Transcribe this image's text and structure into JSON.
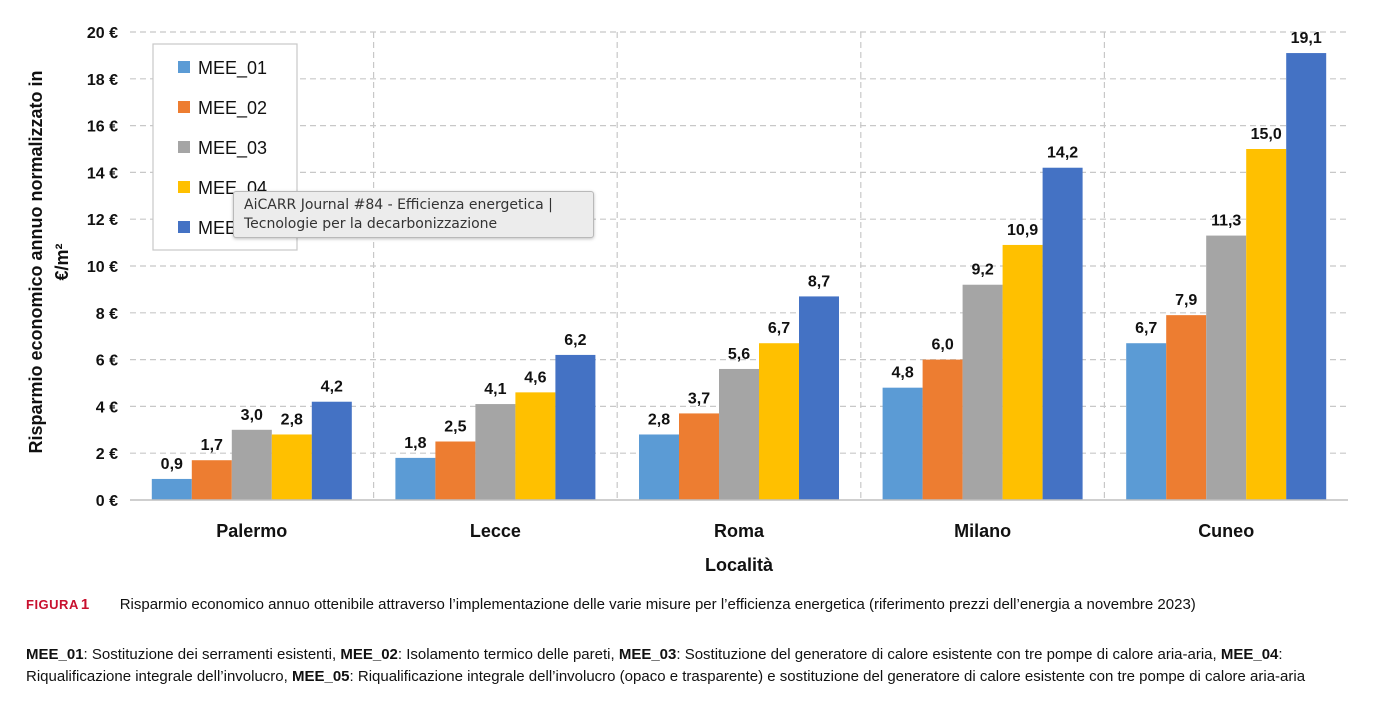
{
  "chart_data": {
    "type": "bar",
    "xlabel": "Località",
    "ylabel": "Risparmio economico annuo normalizzato in €/m²",
    "ylabel_line1": "Risparmio economico annuo normalizzato in",
    "ylabel_line2": "€/m²",
    "ylim": [
      0,
      20
    ],
    "yticks": [
      "0 €",
      "2 €",
      "4 €",
      "6 €",
      "8 €",
      "10 €",
      "12 €",
      "14 €",
      "16 €",
      "18 €",
      "20 €"
    ],
    "grid": true,
    "legend_position": "top-left",
    "categories": [
      "Palermo",
      "Lecce",
      "Roma",
      "Milano",
      "Cuneo"
    ],
    "series": [
      {
        "name": "MEE_01",
        "color": "#5b9bd5",
        "values": [
          0.9,
          1.8,
          2.8,
          4.8,
          6.7
        ],
        "labels": [
          "0,9",
          "1,8",
          "2,8",
          "4,8",
          "6,7"
        ]
      },
      {
        "name": "MEE_02",
        "color": "#ed7d31",
        "values": [
          1.7,
          2.5,
          3.7,
          6.0,
          7.9
        ],
        "labels": [
          "1,7",
          "2,5",
          "3,7",
          "6,0",
          "7,9"
        ]
      },
      {
        "name": "MEE_03",
        "color": "#a5a5a5",
        "values": [
          3.0,
          4.1,
          5.6,
          9.2,
          11.3
        ],
        "labels": [
          "3,0",
          "4,1",
          "5,6",
          "9,2",
          "11,3"
        ]
      },
      {
        "name": "MEE_04",
        "color": "#ffc000",
        "values": [
          2.8,
          4.6,
          6.7,
          10.9,
          15.0
        ],
        "labels": [
          "2,8",
          "4,6",
          "6,7",
          "10,9",
          "15,0"
        ]
      },
      {
        "name": "MEE_05",
        "color": "#4472c4",
        "values": [
          4.2,
          6.2,
          8.7,
          14.2,
          19.1
        ],
        "labels": [
          "4,2",
          "6,2",
          "8,7",
          "14,2",
          "19,1"
        ]
      }
    ]
  },
  "tooltip": {
    "line1": "AiCARR Journal #84 - Efficienza energetica |",
    "line2": "Tecnologie per la decarbonizzazione"
  },
  "caption": {
    "figura": "FIGURA",
    "number": "1",
    "text": "Risparmio economico annuo ottenibile attraverso l’implementazione delle varie misure per l’efficienza energetica (riferimento prezzi dell’energia a novembre 2023)"
  },
  "legend_description": [
    {
      "code": "MEE_01",
      "desc": ": Sostituzione dei serramenti esistenti, "
    },
    {
      "code": "MEE_02",
      "desc": ": Isolamento termico delle pareti, "
    },
    {
      "code": "MEE_03",
      "desc": ": Sostituzione del generatore di calore esistente con tre pompe di calore aria-aria, "
    },
    {
      "code": "MEE_04",
      "desc": ": Riqualificazione integrale dell’involucro, "
    },
    {
      "code": "MEE_05",
      "desc": ": Riqualificazione integrale dell’involucro (opaco e trasparente) e sostituzione del generatore di calore esistente con tre pompe di calore aria-aria"
    }
  ]
}
